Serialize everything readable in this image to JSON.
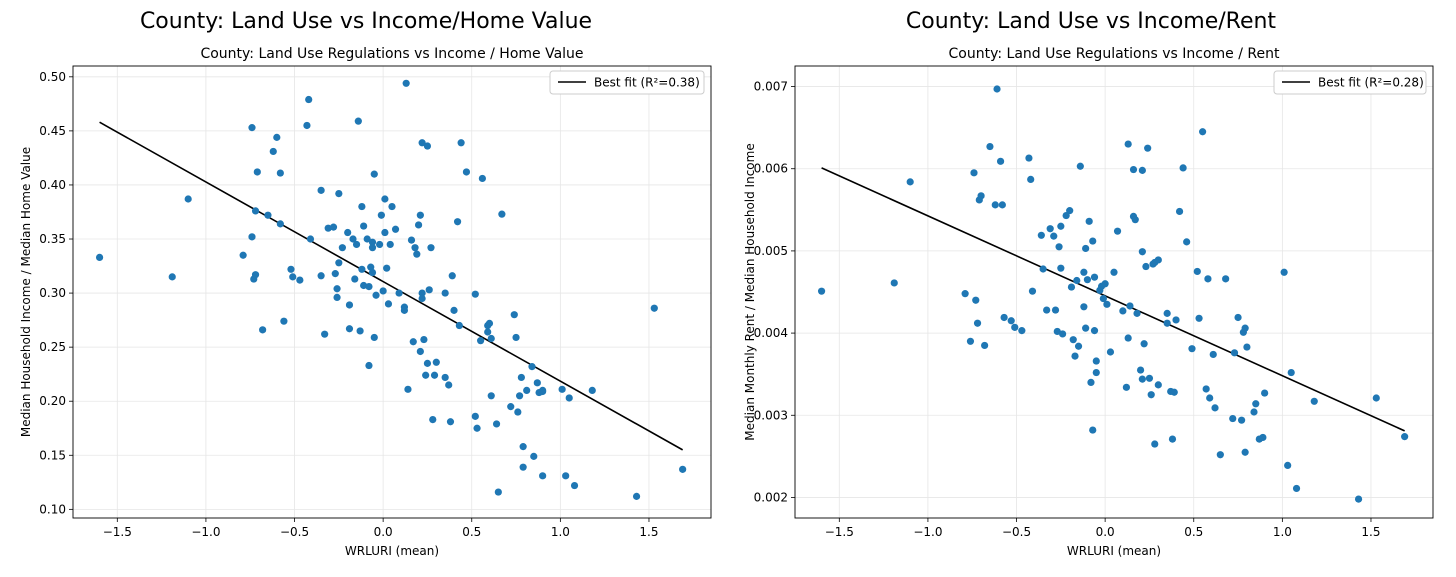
{
  "charts": [
    {
      "type": "scatter",
      "figure_title": "County: Land Use vs Income/Home Value",
      "title": "County: Land Use Regulations vs Income / Home Value",
      "xlabel": "WRLURI (mean)",
      "ylabel": "Median Household Income / Median Home Value",
      "xlim": [
        -1.75,
        1.85
      ],
      "ylim": [
        0.092,
        0.51
      ],
      "xticks": [
        -1.5,
        -1.0,
        -0.5,
        0.0,
        0.5,
        1.0,
        1.5
      ],
      "xtick_labels": [
        "−1.5",
        "−1.0",
        "−0.5",
        "0.0",
        "0.5",
        "1.0",
        "1.5"
      ],
      "yticks": [
        0.1,
        0.15,
        0.2,
        0.25,
        0.3,
        0.35,
        0.4,
        0.45,
        0.5
      ],
      "ytick_labels": [
        "0.10",
        "0.15",
        "0.20",
        "0.25",
        "0.30",
        "0.35",
        "0.40",
        "0.45",
        "0.50"
      ],
      "grid": true,
      "legend_position": "top-right",
      "legend_label": "Best fit (R²=0.38)",
      "point_color": "#1f77b4",
      "line_color": "#000000",
      "fit_line": {
        "x": [
          -1.6,
          1.69
        ],
        "y": [
          0.458,
          0.155
        ]
      },
      "points": [
        [
          -1.6,
          0.333
        ],
        [
          -1.19,
          0.315
        ],
        [
          -1.1,
          0.387
        ],
        [
          -0.79,
          0.335
        ],
        [
          -0.74,
          0.453
        ],
        [
          -0.74,
          0.352
        ],
        [
          -0.73,
          0.313
        ],
        [
          -0.72,
          0.376
        ],
        [
          -0.72,
          0.317
        ],
        [
          -0.71,
          0.412
        ],
        [
          -0.68,
          0.266
        ],
        [
          -0.65,
          0.372
        ],
        [
          -0.62,
          0.431
        ],
        [
          -0.6,
          0.444
        ],
        [
          -0.58,
          0.411
        ],
        [
          -0.58,
          0.364
        ],
        [
          -0.56,
          0.274
        ],
        [
          -0.52,
          0.322
        ],
        [
          -0.51,
          0.315
        ],
        [
          -0.47,
          0.312
        ],
        [
          -0.43,
          0.455
        ],
        [
          -0.42,
          0.479
        ],
        [
          -0.41,
          0.35
        ],
        [
          -0.35,
          0.395
        ],
        [
          -0.35,
          0.316
        ],
        [
          -0.33,
          0.262
        ],
        [
          -0.31,
          0.36
        ],
        [
          -0.28,
          0.361
        ],
        [
          -0.27,
          0.318
        ],
        [
          -0.26,
          0.304
        ],
        [
          -0.26,
          0.296
        ],
        [
          -0.25,
          0.392
        ],
        [
          -0.25,
          0.328
        ],
        [
          -0.23,
          0.342
        ],
        [
          -0.2,
          0.356
        ],
        [
          -0.19,
          0.289
        ],
        [
          -0.19,
          0.267
        ],
        [
          -0.17,
          0.35
        ],
        [
          -0.16,
          0.313
        ],
        [
          -0.15,
          0.345
        ],
        [
          -0.14,
          0.459
        ],
        [
          -0.13,
          0.265
        ],
        [
          -0.12,
          0.38
        ],
        [
          -0.12,
          0.322
        ],
        [
          -0.11,
          0.362
        ],
        [
          -0.11,
          0.307
        ],
        [
          -0.09,
          0.35
        ],
        [
          -0.08,
          0.306
        ],
        [
          -0.08,
          0.233
        ],
        [
          -0.07,
          0.324
        ],
        [
          -0.06,
          0.347
        ],
        [
          -0.06,
          0.342
        ],
        [
          -0.06,
          0.319
        ],
        [
          -0.05,
          0.41
        ],
        [
          -0.05,
          0.259
        ],
        [
          -0.04,
          0.298
        ],
        [
          -0.02,
          0.345
        ],
        [
          -0.01,
          0.372
        ],
        [
          0.0,
          0.302
        ],
        [
          0.01,
          0.387
        ],
        [
          0.01,
          0.356
        ],
        [
          0.02,
          0.323
        ],
        [
          0.03,
          0.29
        ],
        [
          0.04,
          0.345
        ],
        [
          0.05,
          0.38
        ],
        [
          0.07,
          0.359
        ],
        [
          0.09,
          0.3
        ],
        [
          0.12,
          0.287
        ],
        [
          0.12,
          0.284
        ],
        [
          0.13,
          0.494
        ],
        [
          0.14,
          0.211
        ],
        [
          0.16,
          0.349
        ],
        [
          0.17,
          0.255
        ],
        [
          0.18,
          0.342
        ],
        [
          0.19,
          0.336
        ],
        [
          0.2,
          0.363
        ],
        [
          0.21,
          0.372
        ],
        [
          0.21,
          0.246
        ],
        [
          0.22,
          0.439
        ],
        [
          0.22,
          0.3
        ],
        [
          0.22,
          0.295
        ],
        [
          0.23,
          0.257
        ],
        [
          0.24,
          0.224
        ],
        [
          0.25,
          0.436
        ],
        [
          0.25,
          0.235
        ],
        [
          0.26,
          0.303
        ],
        [
          0.27,
          0.342
        ],
        [
          0.28,
          0.183
        ],
        [
          0.29,
          0.224
        ],
        [
          0.3,
          0.236
        ],
        [
          0.35,
          0.3
        ],
        [
          0.35,
          0.222
        ],
        [
          0.37,
          0.215
        ],
        [
          0.38,
          0.181
        ],
        [
          0.39,
          0.316
        ],
        [
          0.4,
          0.284
        ],
        [
          0.42,
          0.366
        ],
        [
          0.43,
          0.27
        ],
        [
          0.44,
          0.439
        ],
        [
          0.47,
          0.412
        ],
        [
          0.52,
          0.299
        ],
        [
          0.52,
          0.186
        ],
        [
          0.53,
          0.175
        ],
        [
          0.55,
          0.256
        ],
        [
          0.56,
          0.406
        ],
        [
          0.59,
          0.27
        ],
        [
          0.59,
          0.264
        ],
        [
          0.6,
          0.272
        ],
        [
          0.61,
          0.258
        ],
        [
          0.61,
          0.205
        ],
        [
          0.64,
          0.179
        ],
        [
          0.65,
          0.116
        ],
        [
          0.67,
          0.373
        ],
        [
          0.72,
          0.195
        ],
        [
          0.74,
          0.28
        ],
        [
          0.75,
          0.259
        ],
        [
          0.76,
          0.19
        ],
        [
          0.77,
          0.205
        ],
        [
          0.78,
          0.222
        ],
        [
          0.79,
          0.158
        ],
        [
          0.79,
          0.139
        ],
        [
          0.81,
          0.21
        ],
        [
          0.84,
          0.232
        ],
        [
          0.85,
          0.149
        ],
        [
          0.87,
          0.217
        ],
        [
          0.88,
          0.208
        ],
        [
          0.9,
          0.131
        ],
        [
          0.9,
          0.209
        ],
        [
          0.9,
          0.21
        ],
        [
          1.01,
          0.211
        ],
        [
          1.03,
          0.131
        ],
        [
          1.05,
          0.203
        ],
        [
          1.08,
          0.122
        ],
        [
          1.18,
          0.21
        ],
        [
          1.43,
          0.112
        ],
        [
          1.53,
          0.286
        ],
        [
          1.69,
          0.137
        ]
      ]
    },
    {
      "type": "scatter",
      "figure_title": "County: Land Use vs Income/Rent",
      "title": "County: Land Use Regulations vs Income / Rent",
      "xlabel": "WRLURI (mean)",
      "ylabel": "Median Monthly Rent / Median Household Income",
      "xlim": [
        -1.75,
        1.85
      ],
      "ylim": [
        0.00175,
        0.00725
      ],
      "xticks": [
        -1.5,
        -1.0,
        -0.5,
        0.0,
        0.5,
        1.0,
        1.5
      ],
      "xtick_labels": [
        "−1.5",
        "−1.0",
        "−0.5",
        "0.0",
        "0.5",
        "1.0",
        "1.5"
      ],
      "yticks": [
        0.002,
        0.003,
        0.004,
        0.005,
        0.006,
        0.007
      ],
      "ytick_labels": [
        "0.002",
        "0.003",
        "0.004",
        "0.005",
        "0.006",
        "0.007"
      ],
      "grid": true,
      "legend_position": "top-right",
      "legend_label": "Best fit (R²=0.28)",
      "point_color": "#1f77b4",
      "line_color": "#000000",
      "fit_line": {
        "x": [
          -1.6,
          1.69
        ],
        "y": [
          0.00601,
          0.00281
        ]
      },
      "points": [
        [
          -1.6,
          0.00451
        ],
        [
          -1.19,
          0.00461
        ],
        [
          -1.1,
          0.00584
        ],
        [
          -0.79,
          0.00448
        ],
        [
          -0.76,
          0.0039
        ],
        [
          -0.74,
          0.00595
        ],
        [
          -0.73,
          0.0044
        ],
        [
          -0.72,
          0.00412
        ],
        [
          -0.71,
          0.00562
        ],
        [
          -0.7,
          0.00567
        ],
        [
          -0.68,
          0.00385
        ],
        [
          -0.65,
          0.00627
        ],
        [
          -0.62,
          0.00556
        ],
        [
          -0.61,
          0.00697
        ],
        [
          -0.59,
          0.00609
        ],
        [
          -0.58,
          0.00556
        ],
        [
          -0.57,
          0.00419
        ],
        [
          -0.53,
          0.00415
        ],
        [
          -0.51,
          0.00407
        ],
        [
          -0.47,
          0.00403
        ],
        [
          -0.43,
          0.00613
        ],
        [
          -0.42,
          0.00587
        ],
        [
          -0.41,
          0.00451
        ],
        [
          -0.36,
          0.00519
        ],
        [
          -0.35,
          0.00478
        ],
        [
          -0.33,
          0.00428
        ],
        [
          -0.31,
          0.00527
        ],
        [
          -0.29,
          0.00518
        ],
        [
          -0.28,
          0.00428
        ],
        [
          -0.27,
          0.00402
        ],
        [
          -0.26,
          0.00505
        ],
        [
          -0.25,
          0.0053
        ],
        [
          -0.25,
          0.00479
        ],
        [
          -0.24,
          0.00399
        ],
        [
          -0.22,
          0.00543
        ],
        [
          -0.2,
          0.00549
        ],
        [
          -0.19,
          0.00456
        ],
        [
          -0.18,
          0.00392
        ],
        [
          -0.17,
          0.00372
        ],
        [
          -0.16,
          0.00464
        ],
        [
          -0.15,
          0.00384
        ],
        [
          -0.14,
          0.00603
        ],
        [
          -0.12,
          0.00474
        ],
        [
          -0.12,
          0.00432
        ],
        [
          -0.11,
          0.00503
        ],
        [
          -0.11,
          0.00406
        ],
        [
          -0.1,
          0.00465
        ],
        [
          -0.09,
          0.00536
        ],
        [
          -0.08,
          0.0034
        ],
        [
          -0.07,
          0.00282
        ],
        [
          -0.07,
          0.00512
        ],
        [
          -0.06,
          0.00468
        ],
        [
          -0.06,
          0.00403
        ],
        [
          -0.05,
          0.00366
        ],
        [
          -0.05,
          0.00352
        ],
        [
          -0.03,
          0.00452
        ],
        [
          -0.02,
          0.00457
        ],
        [
          -0.01,
          0.00442
        ],
        [
          0.0,
          0.0046
        ],
        [
          0.01,
          0.00435
        ],
        [
          0.03,
          0.00377
        ],
        [
          0.05,
          0.00474
        ],
        [
          0.07,
          0.00524
        ],
        [
          0.1,
          0.00427
        ],
        [
          0.12,
          0.00334
        ],
        [
          0.13,
          0.00394
        ],
        [
          0.13,
          0.0063
        ],
        [
          0.14,
          0.00433
        ],
        [
          0.16,
          0.00599
        ],
        [
          0.16,
          0.00542
        ],
        [
          0.17,
          0.00538
        ],
        [
          0.18,
          0.00424
        ],
        [
          0.2,
          0.00355
        ],
        [
          0.21,
          0.00499
        ],
        [
          0.21,
          0.00598
        ],
        [
          0.21,
          0.00344
        ],
        [
          0.22,
          0.00387
        ],
        [
          0.23,
          0.00481
        ],
        [
          0.24,
          0.00625
        ],
        [
          0.25,
          0.00345
        ],
        [
          0.26,
          0.00325
        ],
        [
          0.27,
          0.00484
        ],
        [
          0.28,
          0.00265
        ],
        [
          0.28,
          0.00486
        ],
        [
          0.3,
          0.00337
        ],
        [
          0.3,
          0.00489
        ],
        [
          0.35,
          0.00412
        ],
        [
          0.35,
          0.00424
        ],
        [
          0.37,
          0.00329
        ],
        [
          0.38,
          0.00271
        ],
        [
          0.39,
          0.00328
        ],
        [
          0.4,
          0.00416
        ],
        [
          0.42,
          0.00548
        ],
        [
          0.44,
          0.00601
        ],
        [
          0.46,
          0.00511
        ],
        [
          0.49,
          0.00381
        ],
        [
          0.52,
          0.00475
        ],
        [
          0.53,
          0.00418
        ],
        [
          0.55,
          0.00645
        ],
        [
          0.57,
          0.00332
        ],
        [
          0.58,
          0.00466
        ],
        [
          0.59,
          0.00321
        ],
        [
          0.61,
          0.00374
        ],
        [
          0.62,
          0.00309
        ],
        [
          0.65,
          0.00252
        ],
        [
          0.68,
          0.00466
        ],
        [
          0.72,
          0.00296
        ],
        [
          0.73,
          0.00376
        ],
        [
          0.75,
          0.00419
        ],
        [
          0.77,
          0.00294
        ],
        [
          0.78,
          0.00401
        ],
        [
          0.79,
          0.00255
        ],
        [
          0.79,
          0.00406
        ],
        [
          0.8,
          0.00383
        ],
        [
          0.84,
          0.00304
        ],
        [
          0.85,
          0.00314
        ],
        [
          0.87,
          0.00271
        ],
        [
          0.89,
          0.00273
        ],
        [
          0.9,
          0.00327
        ],
        [
          1.01,
          0.00474
        ],
        [
          1.03,
          0.00239
        ],
        [
          1.05,
          0.00352
        ],
        [
          1.08,
          0.00211
        ],
        [
          1.18,
          0.00317
        ],
        [
          1.43,
          0.00198
        ],
        [
          1.53,
          0.00321
        ],
        [
          1.69,
          0.00274
        ]
      ]
    }
  ]
}
